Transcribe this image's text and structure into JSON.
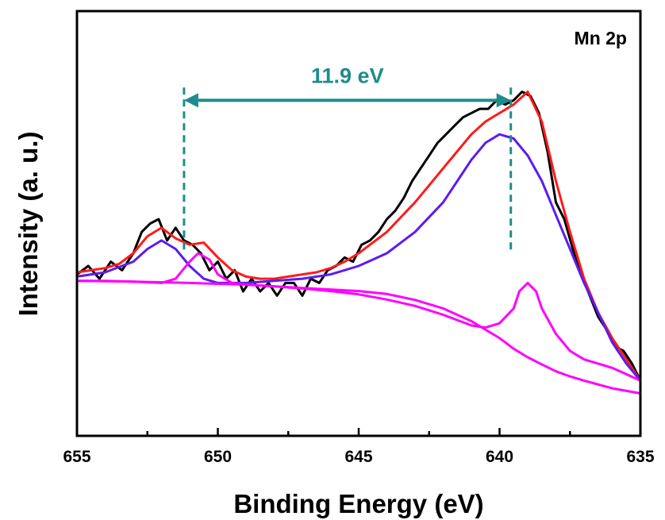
{
  "chart_data": {
    "type": "line",
    "label": "Mn 2p",
    "xlabel": "Binding Energy (eV)",
    "ylabel": "Intensity (a. u.)",
    "xlim": [
      655,
      635
    ],
    "ylim": [
      0,
      100
    ],
    "x_reversed": true,
    "y_ticks_shown": false,
    "grid": false,
    "legend": "none",
    "x_ticks": [
      655,
      650,
      645,
      640,
      635
    ],
    "x_tick_labels": [
      "655",
      "650",
      "645",
      "640",
      "635"
    ],
    "annotation": {
      "text": "11.9 eV",
      "from_x": 651.2,
      "to_x": 639.6,
      "y": 79,
      "line_top": 82,
      "line_bottom": 43,
      "color": "#1e8c8c"
    },
    "series": [
      {
        "role": "raw-data",
        "color": "#000000",
        "x": [
          655,
          654.6,
          654.2,
          653.8,
          653.4,
          653.0,
          652.7,
          652.4,
          652.1,
          651.8,
          651.5,
          651.2,
          650.9,
          650.6,
          650.3,
          650.0,
          649.7,
          649.4,
          649.1,
          648.8,
          648.5,
          648.2,
          647.9,
          647.6,
          647.3,
          647.0,
          646.7,
          646.4,
          646.1,
          645.8,
          645.5,
          645.2,
          644.9,
          644.6,
          644.3,
          644.0,
          643.7,
          643.4,
          643.1,
          642.8,
          642.5,
          642.2,
          641.9,
          641.6,
          641.3,
          641.0,
          640.7,
          640.4,
          640.1,
          639.8,
          639.5,
          639.2,
          638.9,
          638.6,
          638.3,
          638.0,
          637.7,
          637.4,
          637.1,
          636.8,
          636.5,
          636.2,
          635.9,
          635.6,
          635.3,
          635
        ],
        "y": [
          38,
          40,
          37,
          41,
          39,
          43,
          48,
          50,
          51,
          46,
          49,
          46,
          45,
          43,
          39,
          41,
          37,
          39,
          34,
          37,
          34,
          36,
          33,
          36,
          36,
          33,
          37,
          36,
          39,
          40,
          42,
          41,
          45,
          46,
          48,
          51,
          53,
          56,
          60,
          63,
          66,
          69,
          71,
          73,
          75,
          76,
          77,
          77,
          79,
          78,
          79,
          81,
          80,
          76,
          67,
          55,
          51,
          44,
          38,
          33,
          28,
          25,
          21,
          20,
          17,
          13
        ]
      },
      {
        "role": "envelope-fit",
        "color": "#ff1a1a",
        "x": [
          655,
          654.0,
          653.5,
          653.0,
          652.5,
          652.0,
          651.5,
          651.0,
          650.5,
          650.0,
          649.5,
          649.0,
          648.5,
          648.0,
          647.5,
          647.0,
          646.5,
          646.0,
          645.5,
          645.0,
          644.5,
          644.0,
          643.5,
          643.0,
          642.5,
          642.0,
          641.5,
          641.0,
          640.5,
          640.0,
          639.5,
          639.0,
          638.5,
          638.0,
          637.5,
          637.0,
          636.5,
          636.0,
          635.5,
          635
        ],
        "y": [
          38.5,
          39.5,
          40.5,
          43,
          47,
          49,
          46.5,
          45,
          45.5,
          42,
          39,
          37.5,
          37,
          37,
          37.5,
          38,
          38.5,
          39.5,
          41,
          43,
          45.5,
          48,
          51.5,
          55,
          59,
          63,
          67,
          71,
          74,
          76,
          78,
          81,
          74,
          60,
          48,
          37,
          29,
          23,
          18,
          13
        ]
      },
      {
        "role": "main-peak-fit",
        "color": "#5b1cf0",
        "x": [
          655,
          654.0,
          653.0,
          652.5,
          652.0,
          651.5,
          651.0,
          650.5,
          650.0,
          649.0,
          648.0,
          647.0,
          646.0,
          645.0,
          644.0,
          643.0,
          642.0,
          641.5,
          641.0,
          640.5,
          640.0,
          639.5,
          639.0,
          638.5,
          638.0,
          637.5,
          637.0,
          636.5,
          636.0,
          635.5,
          635
        ],
        "y": [
          37.5,
          38.5,
          41,
          44,
          46,
          44,
          40,
          37,
          36,
          36,
          36.5,
          37,
          38,
          40,
          43,
          48,
          55,
          60,
          65,
          69,
          71,
          70,
          66,
          60,
          52,
          44,
          36,
          29,
          22,
          17,
          13
        ]
      },
      {
        "role": "satellite-peak-fit",
        "color": "#ff00ff",
        "x": [
          655,
          654.0,
          653.0,
          652.0,
          651.5,
          651.0,
          650.7,
          650.3,
          650.0,
          649.5,
          649.0,
          648.0,
          647.0,
          646.0,
          645.0,
          644.0,
          643.0,
          642.0,
          641.0,
          640.5,
          640.0,
          639.5,
          639.3,
          639.0,
          638.7,
          638.5,
          638.0,
          637.5,
          637.0,
          636.0,
          635.0
        ],
        "y": [
          36.5,
          36.5,
          36.3,
          36.0,
          37,
          41,
          43,
          41.5,
          38,
          36,
          35.6,
          35.2,
          34.7,
          34.1,
          33.3,
          32.1,
          30.6,
          28.5,
          26,
          25.5,
          26.5,
          30,
          34,
          36,
          34,
          30,
          24,
          20,
          18,
          16,
          13
        ]
      },
      {
        "role": "background",
        "color": "#ff00ff",
        "x": [
          655,
          653.0,
          651.0,
          649.0,
          647.0,
          645.0,
          644.0,
          643.0,
          642.0,
          641.0,
          640.0,
          639.5,
          639.0,
          638.5,
          638.0,
          637.5,
          637.0,
          636.0,
          635.0
        ],
        "y": [
          36.5,
          36.3,
          36.0,
          35.6,
          34.8,
          34.1,
          33.4,
          32.0,
          30.0,
          27.0,
          23.0,
          20.5,
          18.5,
          16.8,
          15.2,
          14.0,
          13.0,
          11.2,
          10.0
        ]
      }
    ]
  }
}
